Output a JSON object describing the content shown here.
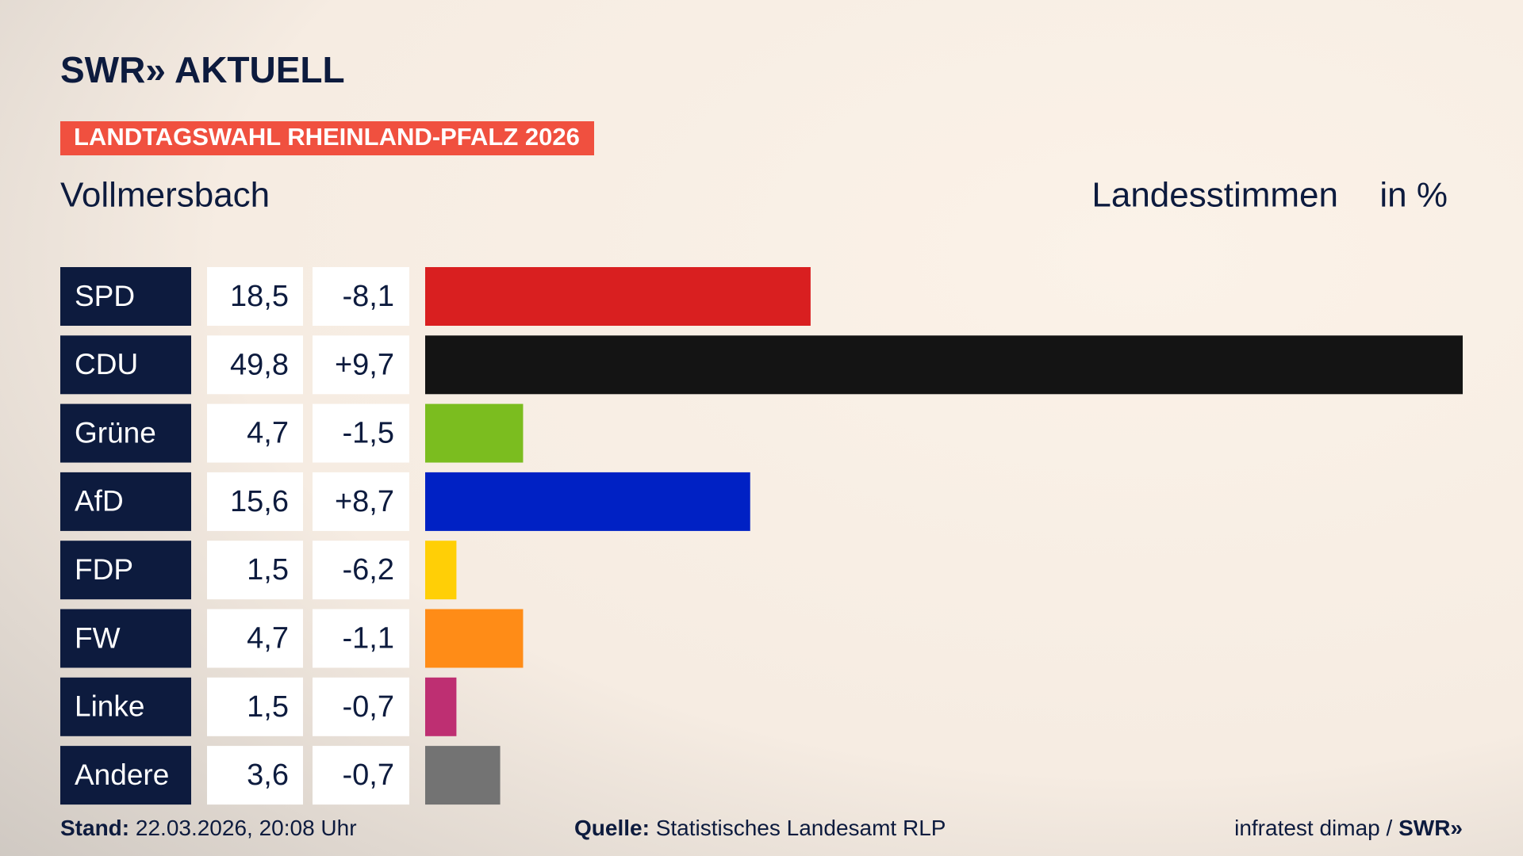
{
  "chart_data": {
    "type": "bar",
    "brand": "SWR» AKTUELL",
    "title": "LANDTAGSWAHL RHEINLAND-PFALZ 2026",
    "subtitle": "Vollmersbach",
    "measure": "Landesstimmen",
    "unit": "in %",
    "categories": [
      "SPD",
      "CDU",
      "Grüne",
      "AfD",
      "FDP",
      "FW",
      "Linke",
      "Andere"
    ],
    "values": [
      18.5,
      49.8,
      4.7,
      15.6,
      1.5,
      4.7,
      1.5,
      3.6
    ],
    "value_labels": [
      "18,5",
      "49,8",
      "4,7",
      "15,6",
      "1,5",
      "4,7",
      "1,5",
      "3,6"
    ],
    "changes": [
      -8.1,
      9.7,
      -1.5,
      8.7,
      -6.2,
      -1.1,
      -0.7,
      -0.7
    ],
    "change_labels": [
      "-8,1",
      "+9,7",
      "-1,5",
      "+8,7",
      "-6,2",
      "-1,1",
      "-0,7",
      "-0,7"
    ],
    "colors": [
      "#d91f20",
      "#141414",
      "#7bbd1f",
      "#0021c4",
      "#ffcf06",
      "#ff8c17",
      "#be2f72",
      "#737373"
    ],
    "footer": {
      "stand_label": "Stand:",
      "stand": "22.03.2026, 20:08 Uhr",
      "source_label": "Quelle:",
      "source": "Statistisches Landesamt RLP",
      "credit": "infratest dimap /",
      "credit_brand": "SWR»"
    }
  }
}
